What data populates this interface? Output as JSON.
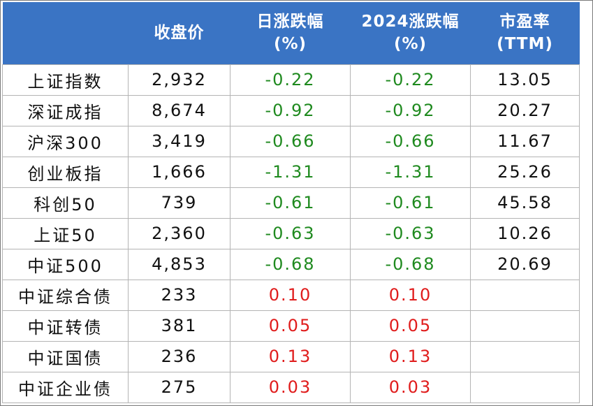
{
  "header": {
    "col0": "",
    "close": "收盘价",
    "daily_line1": "日涨跌幅",
    "daily_line2": "(%)",
    "ytd_line1": "2024涨跌幅",
    "ytd_line2": "(%)",
    "pe_line1": "市盈率",
    "pe_line2": "(TTM)"
  },
  "rows": [
    {
      "name": "上证指数",
      "close": "2,932",
      "daily": "-0.22",
      "ytd": "-0.22",
      "pe": "13.05",
      "sign": "neg"
    },
    {
      "name": "深证成指",
      "close": "8,674",
      "daily": "-0.92",
      "ytd": "-0.92",
      "pe": "20.27",
      "sign": "neg"
    },
    {
      "name": "沪深300",
      "close": "3,419",
      "daily": "-0.66",
      "ytd": "-0.66",
      "pe": "11.67",
      "sign": "neg"
    },
    {
      "name": "创业板指",
      "close": "1,666",
      "daily": "-1.31",
      "ytd": "-1.31",
      "pe": "25.26",
      "sign": "neg"
    },
    {
      "name": "科创50",
      "close": "739",
      "daily": "-0.61",
      "ytd": "-0.61",
      "pe": "45.58",
      "sign": "neg"
    },
    {
      "name": "上证50",
      "close": "2,360",
      "daily": "-0.63",
      "ytd": "-0.63",
      "pe": "10.26",
      "sign": "neg"
    },
    {
      "name": "中证500",
      "close": "4,853",
      "daily": "-0.68",
      "ytd": "-0.68",
      "pe": "20.69",
      "sign": "neg"
    },
    {
      "name": "中证综合债",
      "close": "233",
      "daily": "0.10",
      "ytd": "0.10",
      "pe": "",
      "sign": "pos"
    },
    {
      "name": "中证转债",
      "close": "381",
      "daily": "0.05",
      "ytd": "0.05",
      "pe": "",
      "sign": "pos"
    },
    {
      "name": "中证国债",
      "close": "236",
      "daily": "0.13",
      "ytd": "0.13",
      "pe": "",
      "sign": "pos"
    },
    {
      "name": "中证企业债",
      "close": "275",
      "daily": "0.03",
      "ytd": "0.03",
      "pe": "",
      "sign": "pos"
    }
  ],
  "colors": {
    "header_bg": "#3a74c4",
    "header_text": "#ffffff",
    "negative": "#1f8a1f",
    "positive": "#e01c1c"
  }
}
